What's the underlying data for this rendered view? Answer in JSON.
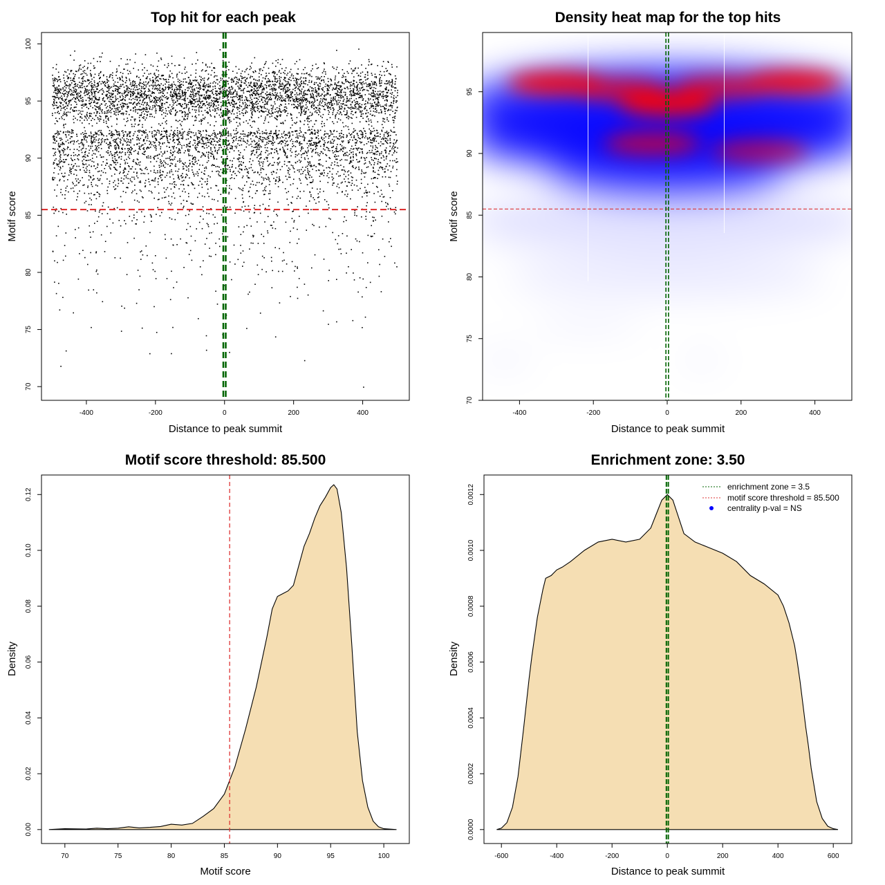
{
  "chart_data": [
    {
      "id": "scatter",
      "type": "scatter",
      "title": "Top hit for each peak",
      "xlabel": "Distance to peak summit",
      "ylabel": "Motif score",
      "xlim": [
        -530,
        535
      ],
      "ylim": [
        68.8,
        101.0
      ],
      "xticks": [
        -400,
        -200,
        0,
        200,
        400
      ],
      "yticks": [
        70,
        75,
        80,
        85,
        90,
        95,
        100
      ],
      "threshold": 85.5,
      "threshold_color": "#dd3333",
      "enrichment_zone": 3.5,
      "zone_color": "#006400",
      "point_color": "#000000",
      "points": {
        "count": 7000,
        "x_range": [
          -500,
          500
        ],
        "score_mode": 95.5,
        "score_range": [
          69.9,
          99.6
        ],
        "seed": 1
      }
    },
    {
      "id": "heatmap",
      "type": "heatmap",
      "title": "Density heat map for the top hits",
      "xlabel": "Distance to peak summit",
      "ylabel": "Motif score",
      "xlim": [
        -500,
        500
      ],
      "ylim": [
        70,
        99.8
      ],
      "xticks": [
        -400,
        -200,
        0,
        200,
        400
      ],
      "yticks": [
        70,
        75,
        80,
        85,
        90,
        95
      ],
      "threshold": 85.5,
      "threshold_color": "#dd3333",
      "enrichment_zone": 3.5,
      "zone_color": "#006400",
      "colors": [
        "#ffffff",
        "#0000ff",
        "#ff0000"
      ],
      "hotspots": [
        {
          "x": -300,
          "y": 95.7,
          "intensity": 0.95
        },
        {
          "x": 0,
          "y": 94.0,
          "intensity": 1.0
        },
        {
          "x": 340,
          "y": 95.8,
          "intensity": 0.95
        },
        {
          "x": -130,
          "y": 95.2,
          "intensity": 0.75
        },
        {
          "x": 150,
          "y": 95.4,
          "intensity": 0.75
        },
        {
          "x": -40,
          "y": 90.8,
          "intensity": 0.7
        },
        {
          "x": 250,
          "y": 90.2,
          "intensity": 0.6
        }
      ]
    },
    {
      "id": "score-density",
      "type": "area",
      "title": "Motif score threshold: 85.500",
      "xlabel": "Motif score",
      "ylabel": "Density",
      "xlim": [
        67.8,
        102.4
      ],
      "ylim": [
        -0.005,
        0.127
      ],
      "xticks": [
        70,
        75,
        80,
        85,
        90,
        95,
        100
      ],
      "yticks": [
        0.0,
        0.02,
        0.04,
        0.06,
        0.08,
        0.1,
        0.12
      ],
      "ytick_labels": [
        "0.00",
        "0.02",
        "0.04",
        "0.06",
        "0.08",
        "0.10",
        "0.12"
      ],
      "threshold": 85.5,
      "threshold_color": "#dd3333",
      "fill_color": "#f5deb3",
      "x": [
        68.5,
        70,
        72,
        73,
        74,
        75,
        76,
        77,
        78,
        79,
        80,
        81,
        82,
        83,
        84,
        85,
        86,
        87,
        88,
        89,
        89.5,
        90,
        90.5,
        91,
        91.5,
        92,
        92.5,
        93,
        93.5,
        94,
        94.5,
        95,
        95.3,
        95.6,
        96,
        96.5,
        97,
        97.5,
        98,
        98.5,
        99,
        99.5,
        100,
        101.2
      ],
      "y": [
        0.0,
        0.0003,
        0.0002,
        0.0005,
        0.0003,
        0.0005,
        0.001,
        0.0006,
        0.0008,
        0.0011,
        0.0019,
        0.0016,
        0.0022,
        0.0047,
        0.0075,
        0.0127,
        0.0225,
        0.036,
        0.051,
        0.069,
        0.079,
        0.0835,
        0.0845,
        0.0855,
        0.0875,
        0.0945,
        0.1015,
        0.106,
        0.1115,
        0.116,
        0.119,
        0.1225,
        0.1235,
        0.122,
        0.1135,
        0.0935,
        0.0655,
        0.035,
        0.0175,
        0.008,
        0.003,
        0.001,
        0.0003,
        0.0
      ]
    },
    {
      "id": "distance-density",
      "type": "area",
      "title": "Enrichment zone: 3.50",
      "xlabel": "Distance to peak summit",
      "ylabel": "Density",
      "xlim": [
        -663,
        667
      ],
      "ylim": [
        -5e-05,
        0.00127
      ],
      "xticks": [
        -600,
        -400,
        -200,
        0,
        200,
        400,
        600
      ],
      "yticks": [
        0,
        0.0002,
        0.0004,
        0.0006,
        0.0008,
        0.001,
        0.0012
      ],
      "ytick_labels": [
        "0.0000",
        "0.0002",
        "0.0004",
        "0.0006",
        "0.0008",
        "0.0010",
        "0.0012"
      ],
      "enrichment_zone": 3.5,
      "zone_color": "#006400",
      "fill_color": "#f5deb3",
      "x": [
        -617,
        -600,
        -580,
        -560,
        -540,
        -520,
        -510,
        -500,
        -490,
        -480,
        -470,
        -460,
        -450,
        -440,
        -420,
        -400,
        -380,
        -350,
        -300,
        -250,
        -200,
        -150,
        -100,
        -60,
        -40,
        -20,
        0,
        20,
        40,
        60,
        100,
        150,
        200,
        250,
        300,
        350,
        400,
        420,
        440,
        460,
        470,
        480,
        490,
        500,
        510,
        520,
        540,
        560,
        580,
        600,
        617
      ],
      "y": [
        0.0,
        5e-06,
        2.5e-05,
        8e-05,
        0.00019,
        0.00036,
        0.00045,
        0.00054,
        0.00062,
        0.00069,
        0.00076,
        0.00081,
        0.00086,
        0.0009,
        0.00091,
        0.00093,
        0.00094,
        0.00096,
        0.001,
        0.00103,
        0.00104,
        0.00103,
        0.00104,
        0.00108,
        0.00113,
        0.00118,
        0.0012,
        0.00118,
        0.00112,
        0.00106,
        0.00103,
        0.00101,
        0.00099,
        0.00096,
        0.00091,
        0.00088,
        0.00084,
        0.0008,
        0.00074,
        0.00066,
        0.0006,
        0.00053,
        0.00045,
        0.00037,
        0.0003,
        0.00022,
        0.0001,
        4e-05,
        1.2e-05,
        3e-06,
        0.0
      ]
    }
  ],
  "legend": [
    {
      "label": "enrichment zone = 3.5",
      "style": "green-dotted"
    },
    {
      "label": "motif score threshold = 85.500",
      "style": "red-dotted"
    },
    {
      "label": "centrality p-val = NS",
      "style": "blue-dot"
    }
  ]
}
